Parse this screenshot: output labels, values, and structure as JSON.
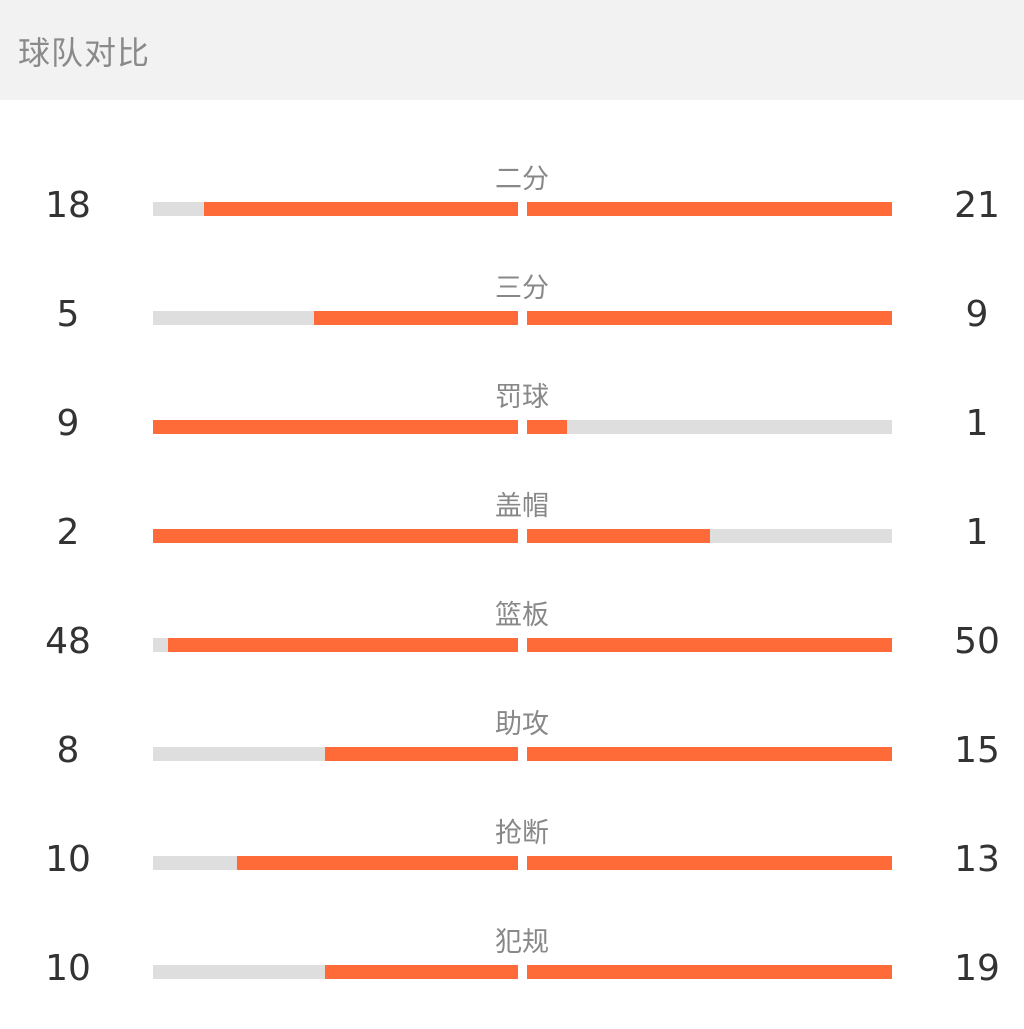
{
  "header": {
    "title": "球队对比"
  },
  "colors": {
    "bar_fill": "#ff6a39",
    "bar_track": "#dedede"
  },
  "stats": [
    {
      "label": "二分",
      "left": "18",
      "right": "21",
      "left_fill": 0.86,
      "right_fill": 1.0
    },
    {
      "label": "三分",
      "left": "5",
      "right": "9",
      "left_fill": 0.56,
      "right_fill": 1.0
    },
    {
      "label": "罚球",
      "left": "9",
      "right": "1",
      "left_fill": 1.0,
      "right_fill": 0.11
    },
    {
      "label": "盖帽",
      "left": "2",
      "right": "1",
      "left_fill": 1.0,
      "right_fill": 0.5
    },
    {
      "label": "篮板",
      "left": "48",
      "right": "50",
      "left_fill": 0.96,
      "right_fill": 1.0
    },
    {
      "label": "助攻",
      "left": "8",
      "right": "15",
      "left_fill": 0.53,
      "right_fill": 1.0
    },
    {
      "label": "抢断",
      "left": "10",
      "right": "13",
      "left_fill": 0.77,
      "right_fill": 1.0
    },
    {
      "label": "犯规",
      "left": "10",
      "right": "19",
      "left_fill": 0.53,
      "right_fill": 1.0
    }
  ]
}
